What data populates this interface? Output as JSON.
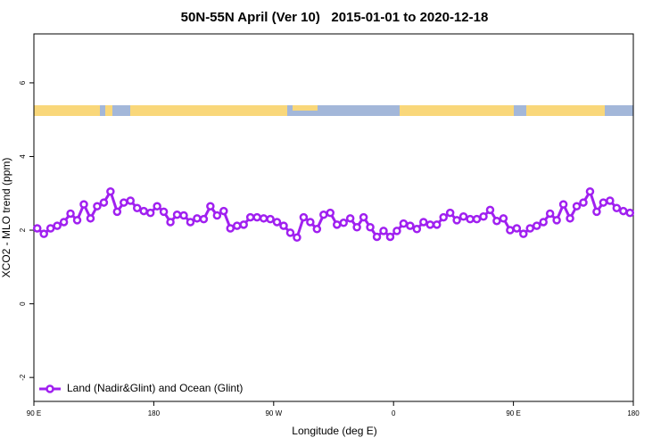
{
  "chart_data": {
    "type": "line",
    "title": "50N-55N April (Ver 10)   2015-01-01 to 2020-12-18",
    "x_label": "Longitude (deg E)",
    "y_label": "XCO2 - MLO trend (ppm)",
    "xlim": [
      90,
      540
    ],
    "ylim": [
      -2.65,
      7.33
    ],
    "xticks": [
      {
        "value": 90,
        "label": "90 E"
      },
      180,
      {
        "value": 270,
        "label": "90 W"
      },
      {
        "value": 360,
        "label": "0"
      },
      {
        "value": 450,
        "label": "90 E"
      },
      {
        "value": 540,
        "label": "180"
      }
    ],
    "yticks": [
      -2,
      0,
      2,
      4,
      6
    ],
    "legend": "bottom-left",
    "x": [
      92.5,
      97.5,
      102.5,
      107.5,
      112.5,
      117.5,
      122.5,
      127.5,
      132.5,
      137.5,
      142.5,
      147.5,
      152.5,
      157.5,
      162.5,
      167.5,
      172.5,
      177.5,
      182.5,
      187.5,
      192.5,
      197.5,
      202.5,
      207.5,
      212.5,
      217.5,
      222.5,
      227.5,
      232.5,
      237.5,
      242.5,
      247.5,
      252.5,
      257.5,
      262.5,
      267.5,
      272.5,
      277.5,
      282.5,
      287.5,
      292.5,
      297.5,
      302.5,
      307.5,
      312.5,
      317.5,
      322.5,
      327.5,
      332.5,
      337.5,
      342.5,
      347.5,
      352.5,
      357.5,
      362.5,
      367.5,
      372.5,
      377.5,
      382.5,
      387.5,
      392.5,
      397.5,
      402.5,
      407.5,
      412.5,
      417.5,
      422.5,
      427.5,
      432.5,
      437.5,
      442.5,
      447.5,
      452.5,
      457.5,
      462.5,
      467.5,
      472.5,
      477.5,
      482.5,
      487.5,
      492.5,
      497.5,
      502.5,
      507.5,
      512.5,
      517.5,
      522.5,
      527.5,
      532.5,
      537.5
    ],
    "series": [
      {
        "name": "Land (Nadir&Glint) and Ocean (Glint)",
        "color": "#a020f0",
        "values": [
          2.05,
          1.9,
          2.05,
          2.12,
          2.22,
          2.45,
          2.27,
          2.7,
          2.32,
          2.65,
          2.75,
          3.05,
          2.5,
          2.75,
          2.8,
          2.6,
          2.52,
          2.47,
          2.65,
          2.5,
          2.22,
          2.42,
          2.4,
          2.22,
          2.32,
          2.3,
          2.65,
          2.4,
          2.52,
          2.05,
          2.12,
          2.15,
          2.35,
          2.35,
          2.32,
          2.3,
          2.22,
          2.12,
          1.93,
          1.8,
          2.35,
          2.22,
          2.03,
          2.42,
          2.47,
          2.15,
          2.2,
          2.32,
          2.08,
          2.35,
          2.08,
          1.82,
          1.98,
          1.82,
          1.98,
          2.18,
          2.12,
          2.03,
          2.22,
          2.15,
          2.15,
          2.35,
          2.47,
          2.27,
          2.37,
          2.3,
          2.3,
          2.37,
          2.55,
          2.25,
          2.32,
          2.0,
          2.05,
          1.9,
          2.05,
          2.12,
          2.22,
          2.45,
          2.27,
          2.7,
          2.32,
          2.65,
          2.75,
          3.05,
          2.5,
          2.75,
          2.8,
          2.6,
          2.52,
          2.47
        ]
      }
    ]
  }
}
